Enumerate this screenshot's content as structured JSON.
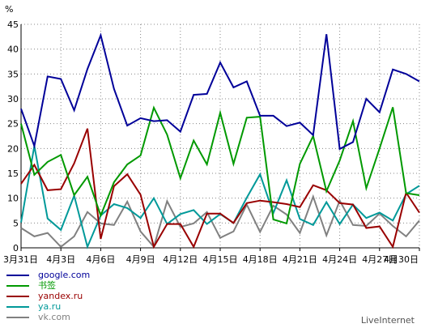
{
  "chart_data": {
    "type": "line",
    "ylabel": "%",
    "ylim": [
      0,
      45
    ],
    "yticks": [
      0,
      5,
      10,
      15,
      20,
      25,
      30,
      35,
      40,
      45
    ],
    "xticks": [
      {
        "index": 0,
        "label": "3月31日"
      },
      {
        "index": 3,
        "label": "4月3日"
      },
      {
        "index": 6,
        "label": "4月6日"
      },
      {
        "index": 9,
        "label": "4月9日"
      },
      {
        "index": 12,
        "label": "4月12日"
      },
      {
        "index": 15,
        "label": "4月15日"
      },
      {
        "index": 18,
        "label": "4月18日"
      },
      {
        "index": 21,
        "label": "4月21日"
      },
      {
        "index": 24,
        "label": "4月24日"
      },
      {
        "index": 27,
        "label": "4月27日"
      },
      {
        "index": 30,
        "label": "4月30日"
      }
    ],
    "x": [
      "3月31日",
      "4月1日",
      "4月2日",
      "4月3日",
      "4月4日",
      "4月5日",
      "4月6日",
      "4月7日",
      "4月8日",
      "4月9日",
      "4月10日",
      "4月11日",
      "4月12日",
      "4月13日",
      "4月14日",
      "4月15日",
      "4月16日",
      "4月17日",
      "4月18日",
      "4月19日",
      "4月20日",
      "4月21日",
      "4月22日",
      "4月23日",
      "4月24日",
      "4月25日",
      "4月26日",
      "4月27日",
      "4月28日",
      "4月29日",
      "4月30日"
    ],
    "grid": true,
    "legend_position": "bottom-left",
    "series": [
      {
        "name": "google.com",
        "color": "#000099",
        "values": [
          28,
          20.5,
          34.5,
          34,
          27.7,
          36,
          42.8,
          32,
          24.6,
          26.1,
          25.5,
          25.7,
          23.4,
          30.8,
          31,
          37.3,
          32.3,
          33.5,
          26.6,
          26.6,
          24.5,
          25.2,
          22.7,
          43,
          19.9,
          21.3,
          30,
          27.3,
          35.9,
          35,
          33.5
        ]
      },
      {
        "name": "书签",
        "color": "#009900",
        "values": [
          25,
          14.7,
          17.3,
          18.7,
          10.6,
          14.3,
          6.5,
          13.2,
          16.8,
          18.6,
          28.2,
          22.8,
          14,
          21.6,
          16.8,
          27.2,
          16.9,
          26.2,
          26.4,
          5.7,
          4.9,
          16.9,
          22.5,
          11.4,
          17.6,
          25.5,
          12,
          20,
          28.3,
          11,
          10.6
        ]
      },
      {
        "name": "yandex.ru",
        "color": "#990000",
        "values": [
          12.9,
          16.7,
          11.6,
          11.8,
          17,
          24,
          1.8,
          12.4,
          14.8,
          10.7,
          0.2,
          4.8,
          4.8,
          0.2,
          6.9,
          6.9,
          5,
          9,
          9.5,
          9.2,
          8.8,
          8.2,
          12.6,
          11.6,
          9,
          8.7,
          4,
          4.3,
          0.2,
          11.1,
          7.1
        ]
      },
      {
        "name": "ya.ru",
        "color": "#009999",
        "values": [
          5.1,
          20.5,
          5.9,
          3.6,
          10.5,
          0.2,
          6.5,
          8.8,
          8,
          6,
          10,
          4.8,
          6.8,
          7.6,
          4.8,
          6.8,
          5,
          10.1,
          14.8,
          7,
          13.6,
          5.8,
          4.6,
          9.2,
          4.8,
          8.7,
          6,
          7.1,
          5.5,
          10.8,
          12.5
        ]
      },
      {
        "name": "vk.com",
        "color": "#808080",
        "values": [
          4,
          2.3,
          3,
          0.2,
          2.3,
          7.2,
          4.9,
          4.6,
          9.3,
          3.3,
          0.2,
          9.4,
          4.2,
          4.9,
          7.2,
          2,
          3.3,
          8.7,
          3.2,
          8.5,
          6.7,
          3,
          10.3,
          2.5,
          9.5,
          4.6,
          4.4,
          6.9,
          4.4,
          2.3,
          5.5
        ]
      }
    ]
  },
  "branding": {
    "label": "LiveInternet"
  }
}
